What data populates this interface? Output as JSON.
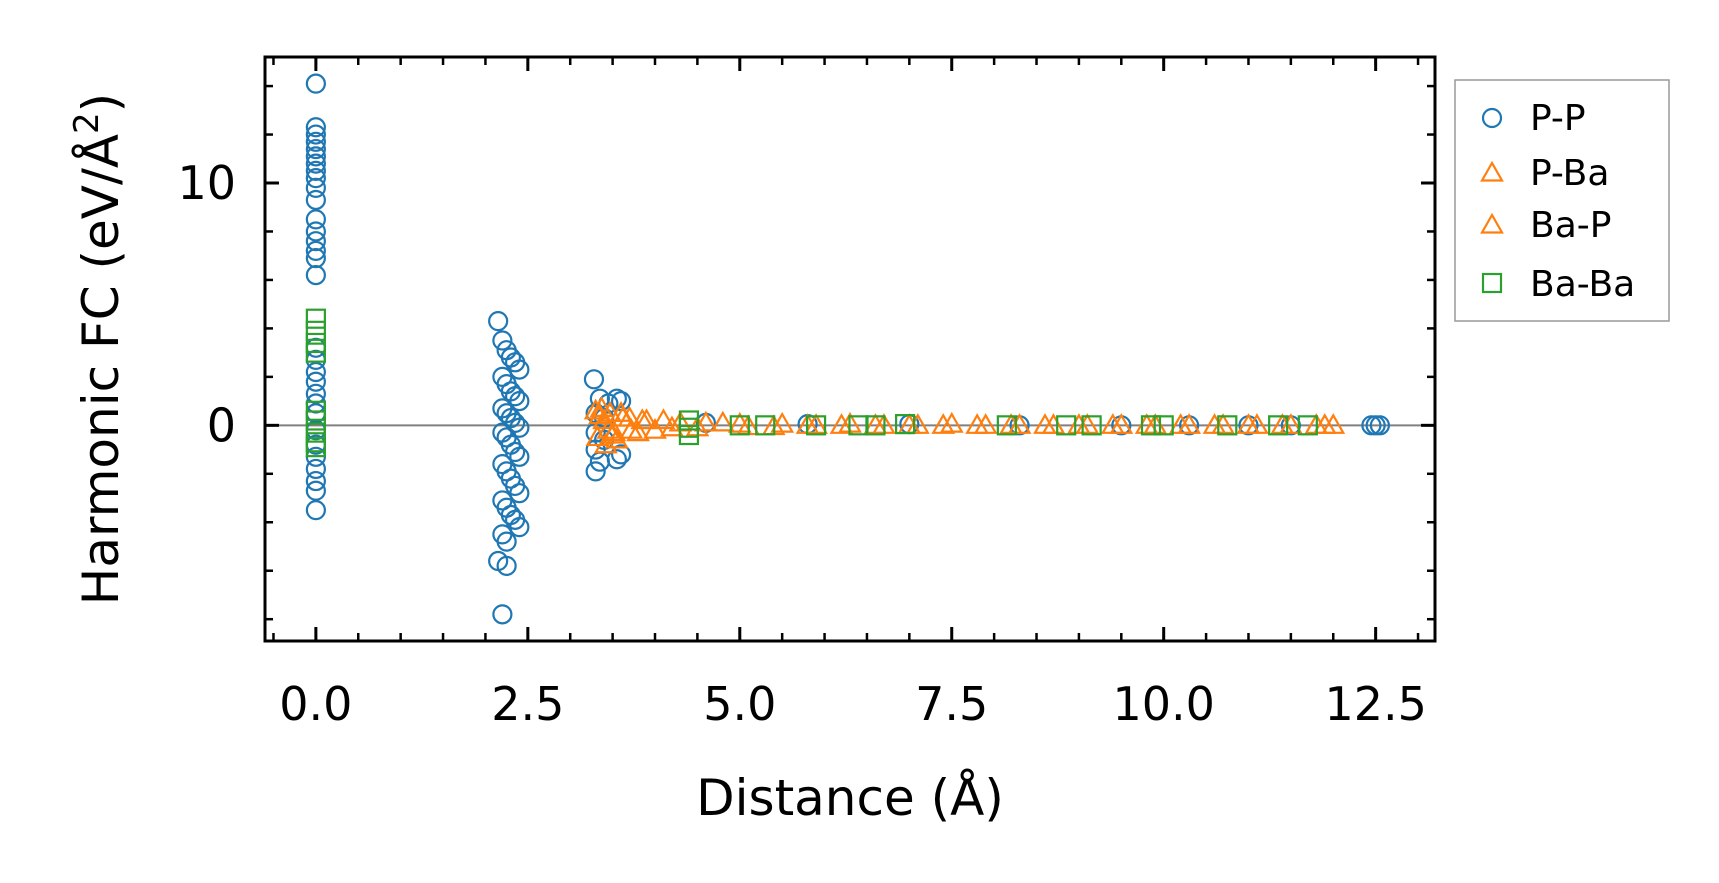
{
  "chart_data": {
    "type": "scatter",
    "title": "",
    "xlabel": "Distance (Å)",
    "ylabel_main": "Harmonic FC (eV/Å",
    "ylabel_sup": "2",
    "ylabel_close": ")",
    "xlim": [
      -0.6,
      13.2
    ],
    "ylim": [
      -8.9,
      15.2
    ],
    "xticks": [
      0.0,
      2.5,
      5.0,
      7.5,
      10.0,
      12.5
    ],
    "xtick_labels": [
      "0.0",
      "2.5",
      "5.0",
      "7.5",
      "10.0",
      "12.5"
    ],
    "yticks": [
      0,
      10
    ],
    "ytick_labels": [
      "0",
      "10"
    ],
    "x_minor_step": 0.5,
    "y_minor_step": 2,
    "zero_line": true,
    "legend_position": "outside-right-top",
    "colors": {
      "P-P": "#1f77b4",
      "P-Ba": "#ff7f0e",
      "Ba-P": "#ff7f0e",
      "Ba-Ba": "#2ca02c",
      "zero_line": "#808080"
    },
    "series": [
      {
        "name": "P-P",
        "marker": "circle",
        "points": [
          [
            0,
            14.1
          ],
          [
            0,
            12.3
          ],
          [
            0,
            12.0
          ],
          [
            0,
            11.7
          ],
          [
            0,
            11.4
          ],
          [
            0,
            11.1
          ],
          [
            0,
            10.8
          ],
          [
            0,
            10.5
          ],
          [
            0,
            10.2
          ],
          [
            0,
            9.8
          ],
          [
            0,
            9.3
          ],
          [
            0,
            8.5
          ],
          [
            0,
            8.0
          ],
          [
            0,
            7.6
          ],
          [
            0,
            7.2
          ],
          [
            0,
            6.9
          ],
          [
            0,
            6.2
          ],
          [
            0,
            3.2
          ],
          [
            0,
            2.7
          ],
          [
            0,
            2.2
          ],
          [
            0,
            1.8
          ],
          [
            0,
            1.3
          ],
          [
            0,
            0.9
          ],
          [
            0,
            0.5
          ],
          [
            0,
            -0.2
          ],
          [
            0,
            -0.8
          ],
          [
            0,
            -1.3
          ],
          [
            0,
            -1.8
          ],
          [
            0,
            -2.3
          ],
          [
            0,
            -2.7
          ],
          [
            0,
            -3.5
          ],
          [
            2.15,
            4.3
          ],
          [
            2.2,
            3.5
          ],
          [
            2.25,
            3.1
          ],
          [
            2.3,
            2.8
          ],
          [
            2.35,
            2.6
          ],
          [
            2.4,
            2.3
          ],
          [
            2.2,
            2.0
          ],
          [
            2.25,
            1.7
          ],
          [
            2.3,
            1.4
          ],
          [
            2.35,
            1.2
          ],
          [
            2.4,
            1.0
          ],
          [
            2.2,
            0.7
          ],
          [
            2.25,
            0.5
          ],
          [
            2.3,
            0.3
          ],
          [
            2.35,
            0.1
          ],
          [
            2.4,
            -0.1
          ],
          [
            2.2,
            -0.3
          ],
          [
            2.25,
            -0.5
          ],
          [
            2.3,
            -0.8
          ],
          [
            2.35,
            -1.1
          ],
          [
            2.4,
            -1.3
          ],
          [
            2.2,
            -1.6
          ],
          [
            2.25,
            -1.9
          ],
          [
            2.3,
            -2.2
          ],
          [
            2.35,
            -2.5
          ],
          [
            2.4,
            -2.8
          ],
          [
            2.2,
            -3.1
          ],
          [
            2.25,
            -3.4
          ],
          [
            2.3,
            -3.7
          ],
          [
            2.35,
            -3.9
          ],
          [
            2.4,
            -4.2
          ],
          [
            2.2,
            -4.5
          ],
          [
            2.25,
            -4.8
          ],
          [
            2.15,
            -5.6
          ],
          [
            2.25,
            -5.8
          ],
          [
            2.2,
            -7.8
          ],
          [
            3.28,
            1.9
          ],
          [
            3.35,
            1.1
          ],
          [
            3.45,
            0.9
          ],
          [
            3.55,
            1.1
          ],
          [
            3.6,
            1.0
          ],
          [
            3.3,
            0.5
          ],
          [
            3.4,
            0.3
          ],
          [
            3.3,
            -0.3
          ],
          [
            3.4,
            -0.6
          ],
          [
            3.3,
            -1.0
          ],
          [
            3.35,
            -1.5
          ],
          [
            3.3,
            -1.9
          ],
          [
            3.55,
            -1.4
          ],
          [
            3.6,
            -1.2
          ],
          [
            4.6,
            0.1
          ],
          [
            5.8,
            0.05
          ],
          [
            7.0,
            0.05
          ],
          [
            8.3,
            0.0
          ],
          [
            9.5,
            0.0
          ],
          [
            10.3,
            0.0
          ],
          [
            11.0,
            0.0
          ],
          [
            11.5,
            0.0
          ],
          [
            12.45,
            0.0
          ],
          [
            12.5,
            0.0
          ],
          [
            12.55,
            0.0
          ]
        ]
      },
      {
        "name": "P-Ba",
        "marker": "triangle",
        "points": [
          [
            3.3,
            0.6
          ],
          [
            3.35,
            0.4
          ],
          [
            3.4,
            0.2
          ],
          [
            3.45,
            -0.2
          ],
          [
            3.5,
            -0.4
          ],
          [
            3.55,
            -0.6
          ],
          [
            3.6,
            0.5
          ],
          [
            3.7,
            0.3
          ],
          [
            3.8,
            -0.3
          ],
          [
            3.9,
            0.2
          ],
          [
            4.0,
            -0.2
          ],
          [
            4.1,
            0.2
          ],
          [
            4.3,
            0.1
          ],
          [
            4.5,
            -0.1
          ],
          [
            4.8,
            0.1
          ],
          [
            5.1,
            -0.05
          ],
          [
            5.5,
            0.05
          ],
          [
            5.9,
            0.0
          ],
          [
            6.3,
            0.05
          ],
          [
            6.7,
            0.0
          ],
          [
            7.1,
            0.0
          ],
          [
            7.5,
            0.05
          ],
          [
            7.9,
            0.0
          ],
          [
            8.3,
            0.0
          ],
          [
            8.7,
            0.0
          ],
          [
            9.1,
            0.0
          ],
          [
            9.5,
            0.0
          ],
          [
            9.9,
            0.0
          ],
          [
            10.3,
            0.0
          ],
          [
            10.7,
            0.0
          ],
          [
            11.1,
            0.0
          ],
          [
            11.5,
            0.0
          ],
          [
            11.9,
            0.0
          ],
          [
            12.0,
            0.0
          ]
        ]
      },
      {
        "name": "Ba-P",
        "marker": "triangle",
        "points": [
          [
            3.32,
            -0.5
          ],
          [
            3.37,
            0.7
          ],
          [
            3.42,
            -0.8
          ],
          [
            3.47,
            0.5
          ],
          [
            3.52,
            -0.3
          ],
          [
            3.62,
            0.3
          ],
          [
            3.72,
            -0.2
          ],
          [
            3.85,
            0.2
          ],
          [
            4.2,
            -0.1
          ],
          [
            4.6,
            0.1
          ],
          [
            5.0,
            0.05
          ],
          [
            5.4,
            -0.05
          ],
          [
            5.8,
            0.0
          ],
          [
            6.2,
            0.0
          ],
          [
            6.6,
            0.0
          ],
          [
            7.0,
            0.0
          ],
          [
            7.4,
            0.0
          ],
          [
            7.8,
            0.0
          ],
          [
            8.2,
            0.0
          ],
          [
            8.6,
            0.0
          ],
          [
            9.0,
            0.0
          ],
          [
            9.4,
            0.0
          ],
          [
            9.8,
            0.0
          ],
          [
            10.2,
            0.0
          ],
          [
            10.6,
            0.0
          ],
          [
            11.0,
            0.0
          ],
          [
            11.4,
            0.0
          ],
          [
            11.8,
            0.0
          ]
        ]
      },
      {
        "name": "Ba-Ba",
        "marker": "square",
        "points": [
          [
            0,
            4.4
          ],
          [
            0,
            3.9
          ],
          [
            0,
            3.4
          ],
          [
            0,
            3.0
          ],
          [
            0,
            0.6
          ],
          [
            0,
            0.2
          ],
          [
            0,
            -0.3
          ],
          [
            0,
            -0.7
          ],
          [
            0,
            -0.9
          ],
          [
            4.4,
            0.2
          ],
          [
            4.4,
            -0.1
          ],
          [
            4.4,
            -0.4
          ],
          [
            5.0,
            0.0
          ],
          [
            5.3,
            0.0
          ],
          [
            5.9,
            0.0
          ],
          [
            6.4,
            0.0
          ],
          [
            6.6,
            0.0
          ],
          [
            6.95,
            0.05
          ],
          [
            8.15,
            0.0
          ],
          [
            8.85,
            0.0
          ],
          [
            9.15,
            0.0
          ],
          [
            9.85,
            0.0
          ],
          [
            10.0,
            0.0
          ],
          [
            10.75,
            0.0
          ],
          [
            11.35,
            0.0
          ],
          [
            11.7,
            0.0
          ]
        ]
      }
    ]
  }
}
